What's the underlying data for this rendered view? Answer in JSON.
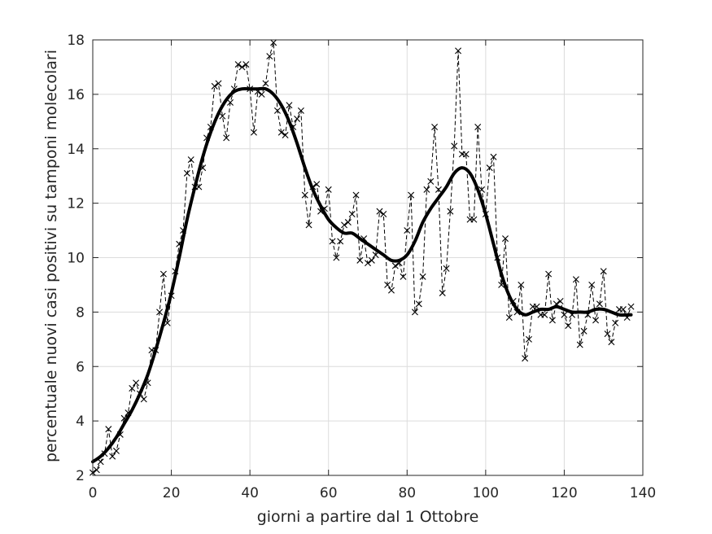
{
  "chart_data": {
    "type": "line",
    "title": "",
    "xlabel": "giorni a partire dal 1 Ottobre",
    "ylabel": "percentuale nuovi casi positivi su tamponi molecolari",
    "xlim": [
      0,
      140
    ],
    "ylim": [
      2,
      18
    ],
    "xticks": [
      0,
      20,
      40,
      60,
      80,
      100,
      120,
      140
    ],
    "yticks": [
      2,
      4,
      6,
      8,
      10,
      12,
      14,
      16,
      18
    ],
    "xtick_labels": [
      "0",
      "20",
      "40",
      "60",
      "80",
      "100",
      "120",
      "140"
    ],
    "ytick_labels": [
      "2",
      "4",
      "6",
      "8",
      "10",
      "12",
      "14",
      "16",
      "18"
    ],
    "grid": true,
    "legend": "none",
    "series": [
      {
        "style": "dashed line with x markers",
        "color": "#000000",
        "x": [
          0,
          1,
          2,
          3,
          4,
          5,
          6,
          7,
          8,
          9,
          10,
          11,
          12,
          13,
          14,
          15,
          16,
          17,
          18,
          19,
          20,
          21,
          22,
          23,
          24,
          25,
          26,
          27,
          28,
          29,
          30,
          31,
          32,
          33,
          34,
          35,
          36,
          37,
          38,
          39,
          40,
          41,
          42,
          43,
          44,
          45,
          46,
          47,
          48,
          49,
          50,
          51,
          52,
          53,
          54,
          55,
          56,
          57,
          58,
          59,
          60,
          61,
          62,
          63,
          64,
          65,
          66,
          67,
          68,
          69,
          70,
          71,
          72,
          73,
          74,
          75,
          76,
          77,
          78,
          79,
          80,
          81,
          82,
          83,
          84,
          85,
          86,
          87,
          88,
          89,
          90,
          91,
          92,
          93,
          94,
          95,
          96,
          97,
          98,
          99,
          100,
          101,
          102,
          103,
          104,
          105,
          106,
          107,
          108,
          109,
          110,
          111,
          112,
          113,
          114,
          115,
          116,
          117,
          118,
          119,
          120,
          121,
          122,
          123,
          124,
          125,
          126,
          127,
          128,
          129,
          130,
          131,
          132,
          133,
          134,
          135,
          136,
          137
        ],
        "y": [
          2.1,
          2.2,
          2.5,
          2.8,
          3.7,
          2.7,
          2.9,
          3.5,
          4.1,
          4.3,
          5.2,
          5.4,
          5.0,
          4.8,
          5.4,
          6.6,
          6.6,
          8.0,
          9.4,
          7.6,
          8.6,
          9.5,
          10.5,
          11.0,
          13.1,
          13.6,
          12.6,
          12.6,
          13.3,
          14.4,
          14.8,
          16.3,
          16.4,
          15.2,
          14.4,
          15.7,
          16.2,
          17.1,
          17.0,
          17.1,
          16.2,
          14.6,
          16.1,
          16.0,
          16.4,
          17.4,
          17.9,
          15.4,
          14.6,
          14.5,
          15.6,
          14.8,
          15.1,
          15.4,
          12.3,
          11.2,
          12.6,
          12.7,
          11.7,
          11.8,
          12.5,
          10.6,
          10.0,
          10.6,
          11.2,
          11.3,
          11.6,
          12.3,
          9.9,
          10.7,
          9.8,
          9.9,
          10.1,
          11.7,
          11.6,
          9.0,
          8.8,
          9.7,
          9.8,
          9.3,
          11.0,
          12.3,
          8.0,
          8.3,
          9.3,
          12.5,
          12.8,
          14.8,
          12.5,
          8.7,
          9.6,
          11.7,
          14.1,
          17.6,
          13.8,
          13.8,
          11.4,
          11.4,
          14.8,
          12.5,
          11.6,
          13.3,
          13.7,
          10.0,
          9.0,
          10.7,
          7.8,
          8.4,
          8.0,
          9.0,
          6.3,
          7.0,
          8.2,
          8.2,
          7.9,
          7.9,
          9.4,
          7.7,
          8.3,
          8.4,
          7.9,
          7.5,
          7.9,
          9.2,
          6.8,
          7.3,
          7.9,
          9.0,
          7.7,
          8.3,
          9.5,
          7.2,
          6.9,
          7.6,
          8.1,
          8.1,
          7.8,
          8.2
        ]
      },
      {
        "style": "thick solid line (smoothed)",
        "color": "#000000",
        "x": [
          0,
          2,
          4,
          6,
          8,
          10,
          12,
          14,
          16,
          18,
          20,
          22,
          24,
          26,
          28,
          30,
          32,
          34,
          36,
          38,
          40,
          42,
          44,
          46,
          48,
          50,
          52,
          54,
          56,
          58,
          60,
          62,
          64,
          66,
          68,
          70,
          72,
          74,
          76,
          78,
          80,
          82,
          84,
          86,
          88,
          90,
          92,
          94,
          96,
          98,
          100,
          102,
          104,
          106,
          108,
          110,
          112,
          114,
          116,
          118,
          120,
          122,
          124,
          126,
          128,
          130,
          132,
          134,
          136,
          137
        ],
        "y": [
          2.5,
          2.7,
          3.0,
          3.4,
          3.9,
          4.4,
          5.0,
          5.7,
          6.6,
          7.6,
          8.7,
          10.0,
          11.4,
          12.6,
          13.7,
          14.6,
          15.3,
          15.8,
          16.1,
          16.2,
          16.2,
          16.2,
          16.2,
          16.0,
          15.6,
          15.0,
          14.2,
          13.3,
          12.5,
          11.9,
          11.4,
          11.1,
          10.9,
          10.9,
          10.7,
          10.5,
          10.3,
          10.1,
          9.9,
          9.9,
          10.1,
          10.6,
          11.3,
          11.8,
          12.2,
          12.6,
          13.1,
          13.3,
          13.1,
          12.5,
          11.6,
          10.5,
          9.4,
          8.6,
          8.1,
          7.9,
          8.0,
          8.1,
          8.1,
          8.2,
          8.1,
          8.0,
          8.0,
          8.0,
          8.1,
          8.1,
          8.0,
          7.9,
          7.9,
          7.9
        ]
      }
    ]
  }
}
